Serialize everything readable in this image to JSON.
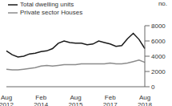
{
  "chart_data": {
    "type": "line",
    "y_label": "no.",
    "categories": [
      "Aug 2012",
      null,
      null,
      null,
      null,
      null,
      "Feb 2014",
      null,
      null,
      null,
      null,
      null,
      "Aug 2015",
      null,
      null,
      null,
      null,
      null,
      "Feb 2017",
      null,
      null,
      null,
      null,
      null,
      "Aug 2018"
    ],
    "series": [
      {
        "name": "Total dwelling units",
        "color": "#1a1a1a",
        "values": [
          4700,
          4200,
          3900,
          4000,
          4300,
          4400,
          4600,
          4700,
          5000,
          5700,
          6000,
          5800,
          5700,
          5700,
          5500,
          5600,
          6000,
          5800,
          5600,
          5300,
          5400,
          6300,
          7000,
          6200,
          5000
        ]
      },
      {
        "name": "Private sector Houses",
        "color": "#8c8c8c",
        "values": [
          2300,
          2200,
          2200,
          2300,
          2400,
          2500,
          2700,
          2800,
          2700,
          2800,
          2900,
          2900,
          2900,
          3000,
          3000,
          3000,
          3000,
          3000,
          3100,
          3000,
          3000,
          3100,
          3300,
          3500,
          3200
        ]
      }
    ],
    "ylim": [
      0,
      8000
    ],
    "yticks": [
      0,
      2000,
      4000,
      6000,
      8000
    ],
    "grid": false,
    "legend": "top-left"
  }
}
